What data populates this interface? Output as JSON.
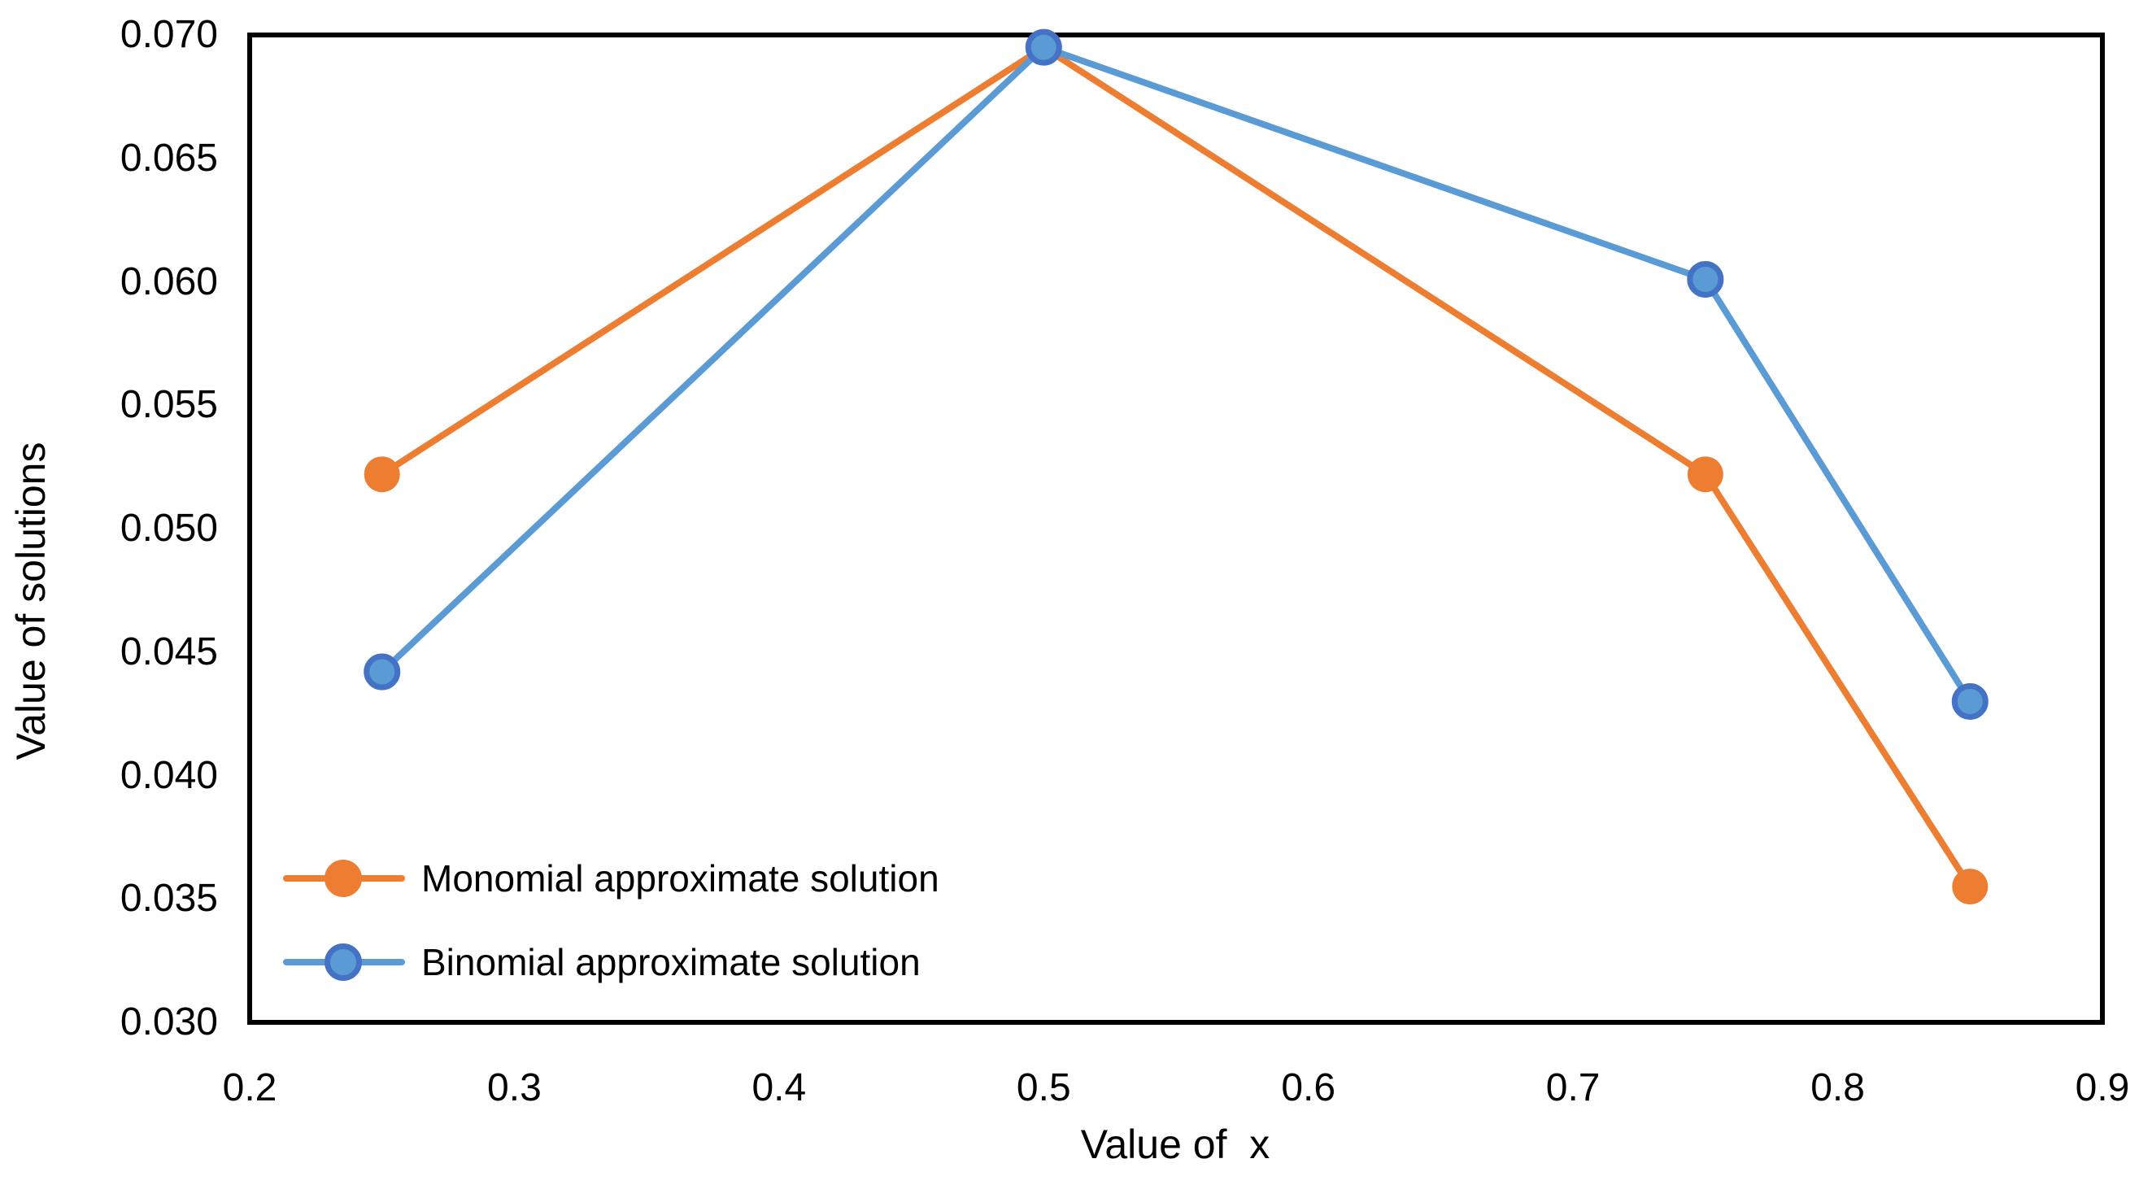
{
  "chart_data": {
    "type": "line",
    "title": "",
    "xlabel": "Value of  x",
    "ylabel": "Value of solutions",
    "xlim": [
      0.2,
      0.9
    ],
    "ylim": [
      0.03,
      0.07
    ],
    "xticks": [
      "0.2",
      "0.3",
      "0.4",
      "0.5",
      "0.6",
      "0.7",
      "0.8",
      "0.9"
    ],
    "yticks": [
      "0.030",
      "0.035",
      "0.040",
      "0.045",
      "0.050",
      "0.055",
      "0.060",
      "0.065",
      "0.070"
    ],
    "grid": false,
    "frame_color": "#000000",
    "background_color": "#ffffff",
    "legend_position": "inside-bottom-left",
    "x": [
      0.25,
      0.5,
      0.75,
      0.85
    ],
    "series": [
      {
        "name": "Monomial approximate solution",
        "color": "#ED7D31",
        "marker_fill": "#ED7D31",
        "marker_stroke": "#ED7D31",
        "values": [
          0.0522,
          0.0695,
          0.0522,
          0.0355
        ]
      },
      {
        "name": "Binomial approximate solution",
        "color": "#5B9BD5",
        "marker_fill": "#5B9BD5",
        "marker_stroke": "#4472C4",
        "values": [
          0.0442,
          0.0695,
          0.0601,
          0.043
        ]
      }
    ]
  }
}
